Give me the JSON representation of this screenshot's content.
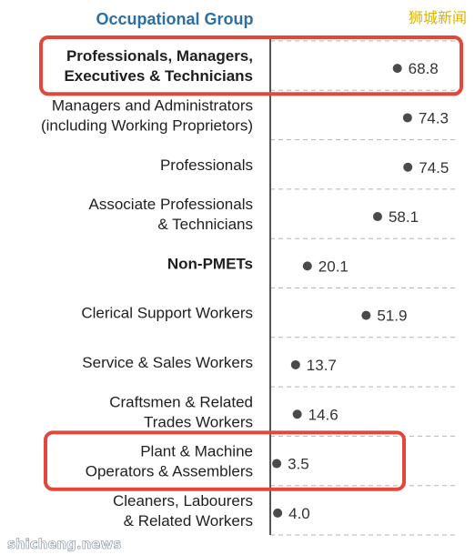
{
  "watermark_top": "狮城新闻",
  "watermark_bottom": "shicheng.news",
  "colors": {
    "header": "#2c6fa6",
    "highlight": "#e2473a",
    "dot": "#4a4a4a",
    "axis": "#555555",
    "grid": "#b5b5b5"
  },
  "chart_data": {
    "type": "scatter",
    "header": "Occupational Group",
    "categories": [
      {
        "lines": [
          "Professionals, Managers,",
          "Executives & Technicians"
        ],
        "value": 68.8,
        "label": "68.8",
        "bold": true,
        "highlight": true
      },
      {
        "lines": [
          "Managers and Administrators",
          "(including Working Proprietors)"
        ],
        "value": 74.3,
        "label": "74.3",
        "bold": false,
        "highlight": false
      },
      {
        "lines": [
          "Professionals"
        ],
        "value": 74.5,
        "label": "74.5",
        "bold": false,
        "highlight": false
      },
      {
        "lines": [
          "Associate Professionals",
          "& Technicians"
        ],
        "value": 58.1,
        "label": "58.1",
        "bold": false,
        "highlight": false
      },
      {
        "lines": [
          "Non-PMETs"
        ],
        "value": 20.1,
        "label": "20.1",
        "bold": true,
        "highlight": false
      },
      {
        "lines": [
          "Clerical Support Workers"
        ],
        "value": 51.9,
        "label": "51.9",
        "bold": false,
        "highlight": false
      },
      {
        "lines": [
          "Service & Sales Workers"
        ],
        "value": 13.7,
        "label": "13.7",
        "bold": false,
        "highlight": false
      },
      {
        "lines": [
          "Craftsmen & Related",
          "Trades Workers"
        ],
        "value": 14.6,
        "label": "14.6",
        "bold": false,
        "highlight": false
      },
      {
        "lines": [
          "Plant & Machine",
          "Operators & Assemblers"
        ],
        "value": 3.5,
        "label": "3.5",
        "bold": false,
        "highlight": true
      },
      {
        "lines": [
          "Cleaners, Labourers",
          "& Related Workers"
        ],
        "value": 4.0,
        "label": "4.0",
        "bold": false,
        "highlight": false
      }
    ],
    "xlim": [
      0,
      100
    ],
    "grid": true
  }
}
